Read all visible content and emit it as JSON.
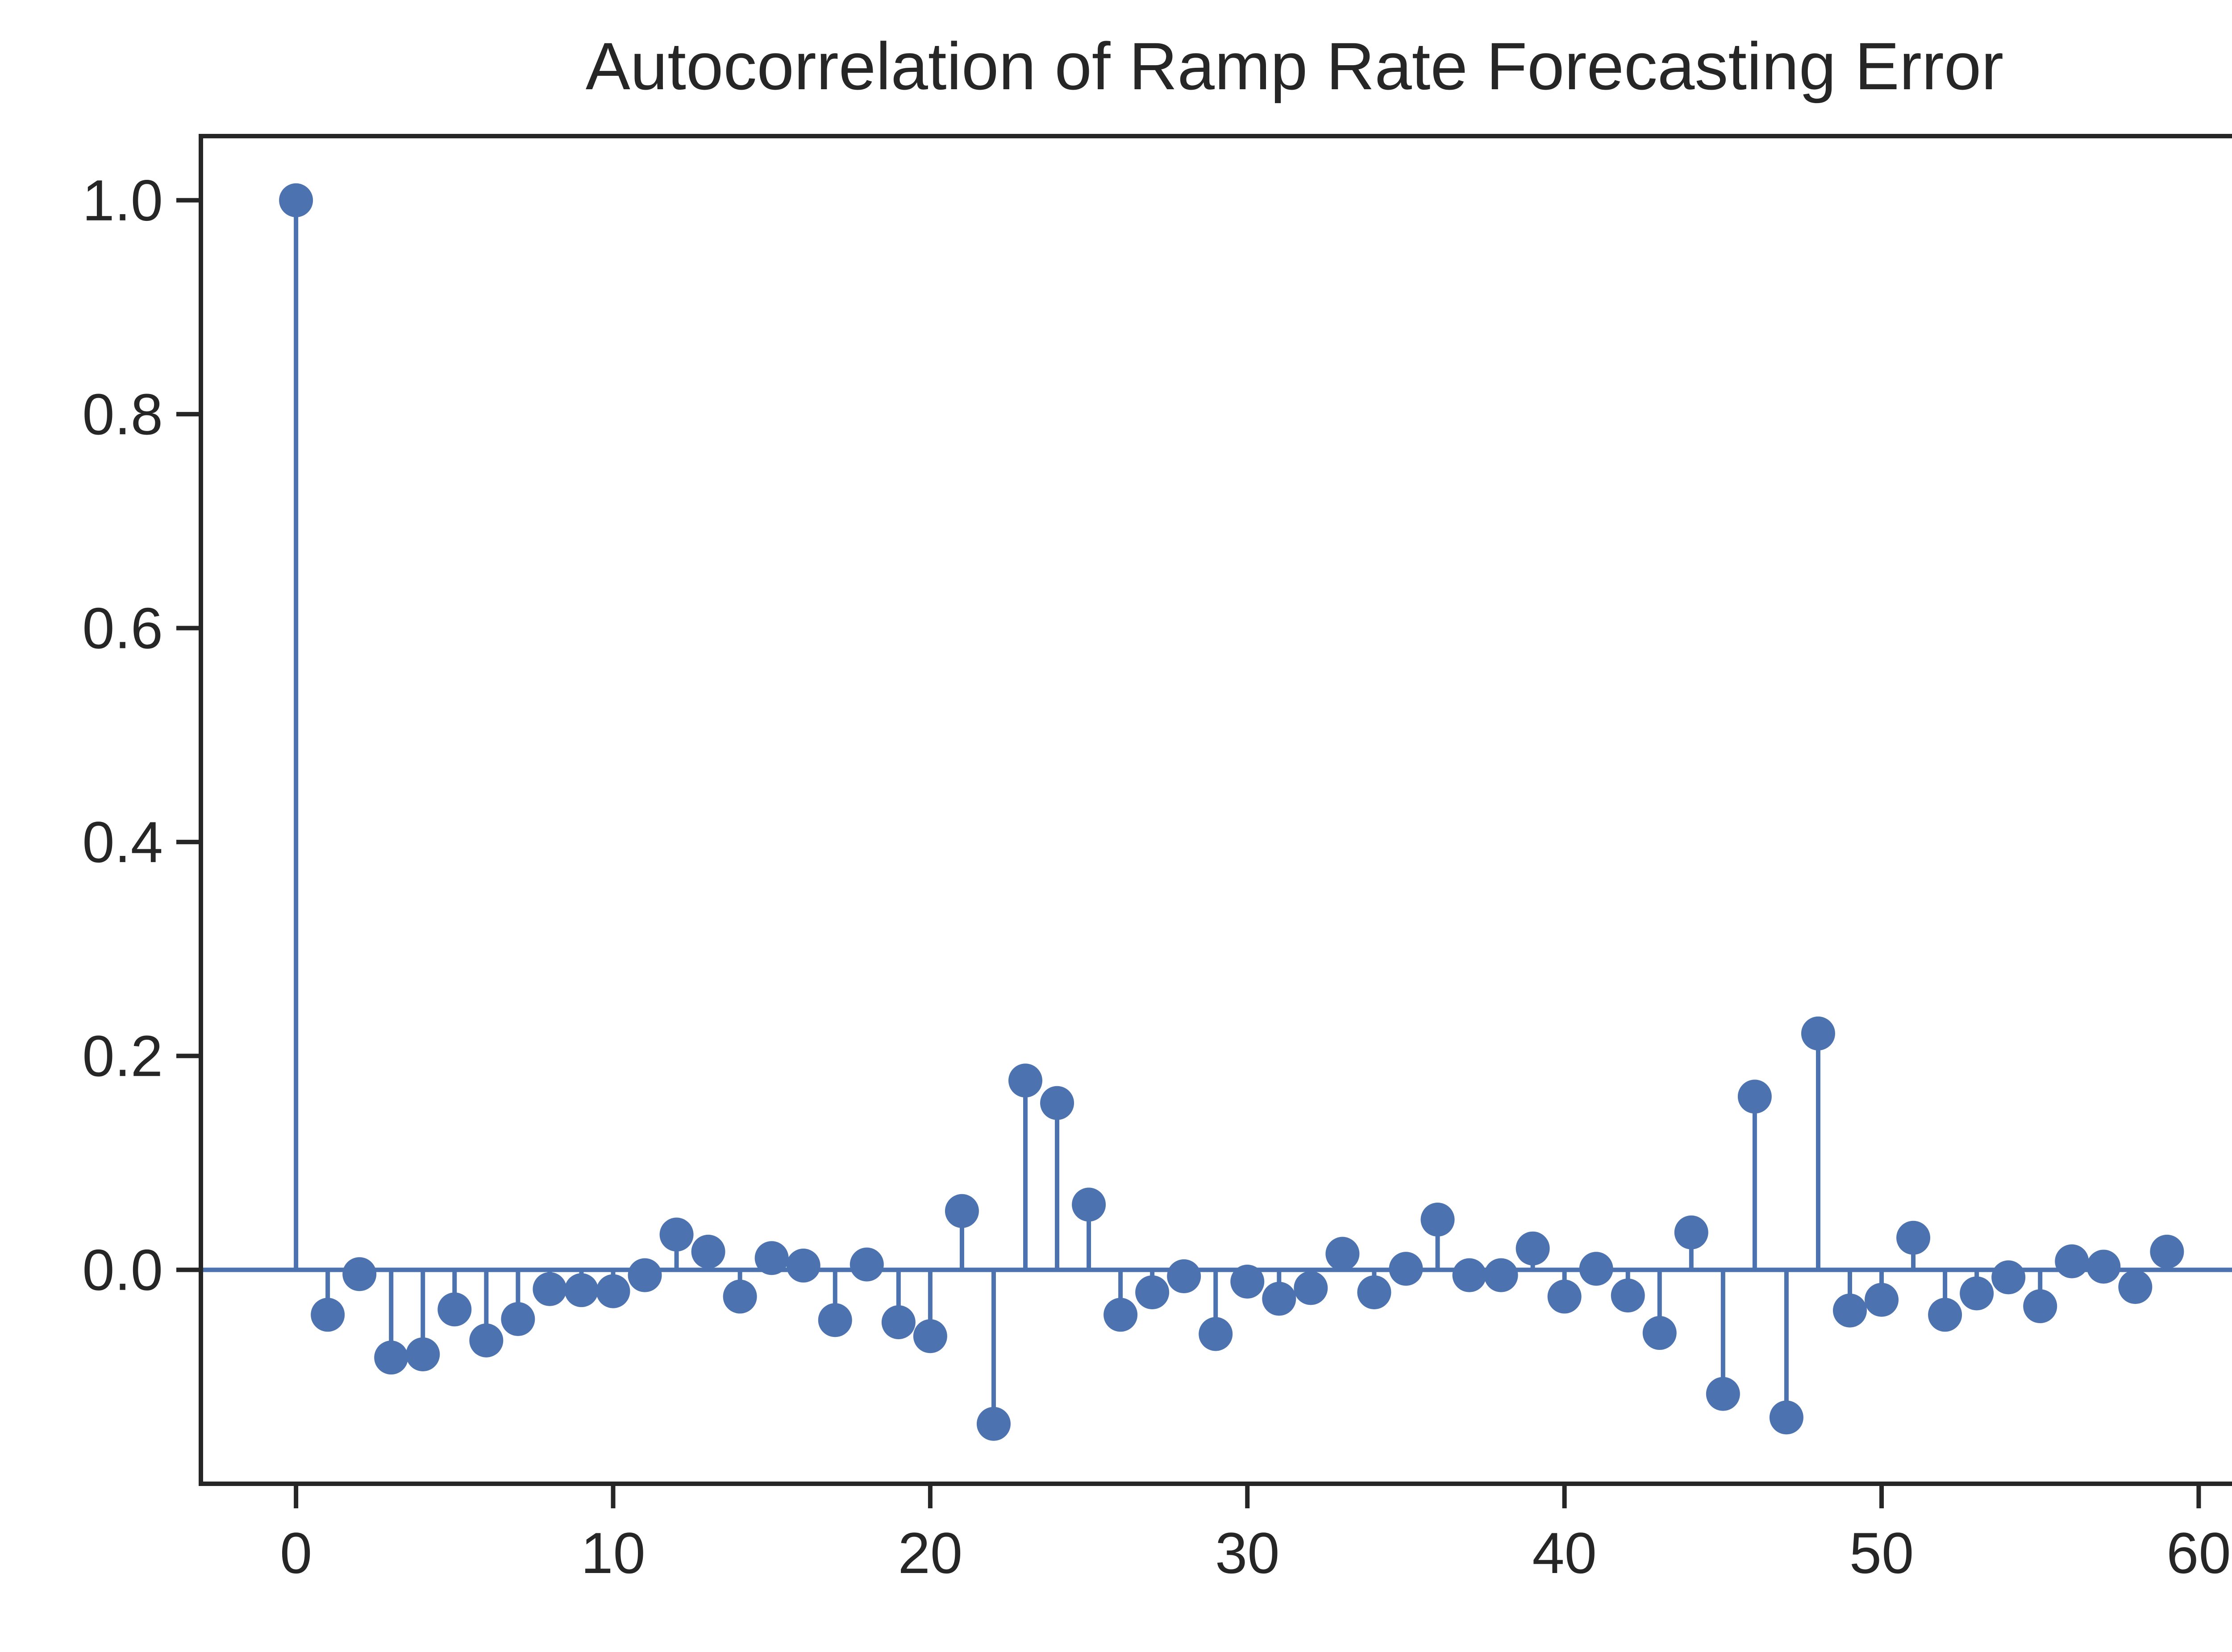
{
  "chart_data": {
    "type": "stem",
    "title": "Autocorrelation of Ramp Rate Forecasting Error",
    "xlabel": "",
    "ylabel": "",
    "xlim": [
      -3,
      62.5
    ],
    "ylim": [
      -0.2,
      1.06
    ],
    "x_ticks": [
      0,
      10,
      20,
      30,
      40,
      50,
      60
    ],
    "y_ticks": [
      0.0,
      0.2,
      0.4,
      0.6,
      0.8,
      1.0
    ],
    "x_tick_labels": [
      "0",
      "10",
      "20",
      "30",
      "40",
      "50",
      "60"
    ],
    "y_tick_labels": [
      "0.0",
      "0.2",
      "0.4",
      "0.6",
      "0.8",
      "1.0"
    ],
    "grid": false,
    "baseline": 0,
    "color": "#4c72b0",
    "lags": [
      0,
      1,
      2,
      3,
      4,
      5,
      6,
      7,
      8,
      9,
      10,
      11,
      12,
      13,
      14,
      15,
      16,
      17,
      18,
      19,
      20,
      21,
      22,
      23,
      24,
      25,
      26,
      27,
      28,
      29,
      30,
      31,
      32,
      33,
      34,
      35,
      36,
      37,
      38,
      39,
      40,
      41,
      42,
      43,
      44,
      45,
      46,
      47,
      48,
      49,
      50,
      51,
      52,
      53,
      54,
      55,
      56,
      57,
      58,
      59
    ],
    "values": [
      1.0,
      -0.042,
      -0.004,
      -0.082,
      -0.079,
      -0.037,
      -0.066,
      -0.046,
      -0.018,
      -0.019,
      -0.02,
      -0.005,
      0.033,
      0.017,
      -0.025,
      0.011,
      0.004,
      -0.047,
      0.005,
      -0.049,
      -0.062,
      0.055,
      -0.144,
      0.177,
      0.156,
      0.061,
      -0.042,
      -0.021,
      -0.006,
      -0.06,
      -0.011,
      -0.027,
      -0.017,
      0.015,
      -0.021,
      0.001,
      0.047,
      -0.005,
      -0.005,
      0.02,
      -0.025,
      0.001,
      -0.024,
      -0.059,
      0.035,
      -0.116,
      0.162,
      -0.138,
      0.221,
      -0.038,
      -0.028,
      0.03,
      -0.042,
      -0.022,
      -0.007,
      -0.034,
      0.008,
      0.003,
      -0.016,
      0.017
    ]
  }
}
